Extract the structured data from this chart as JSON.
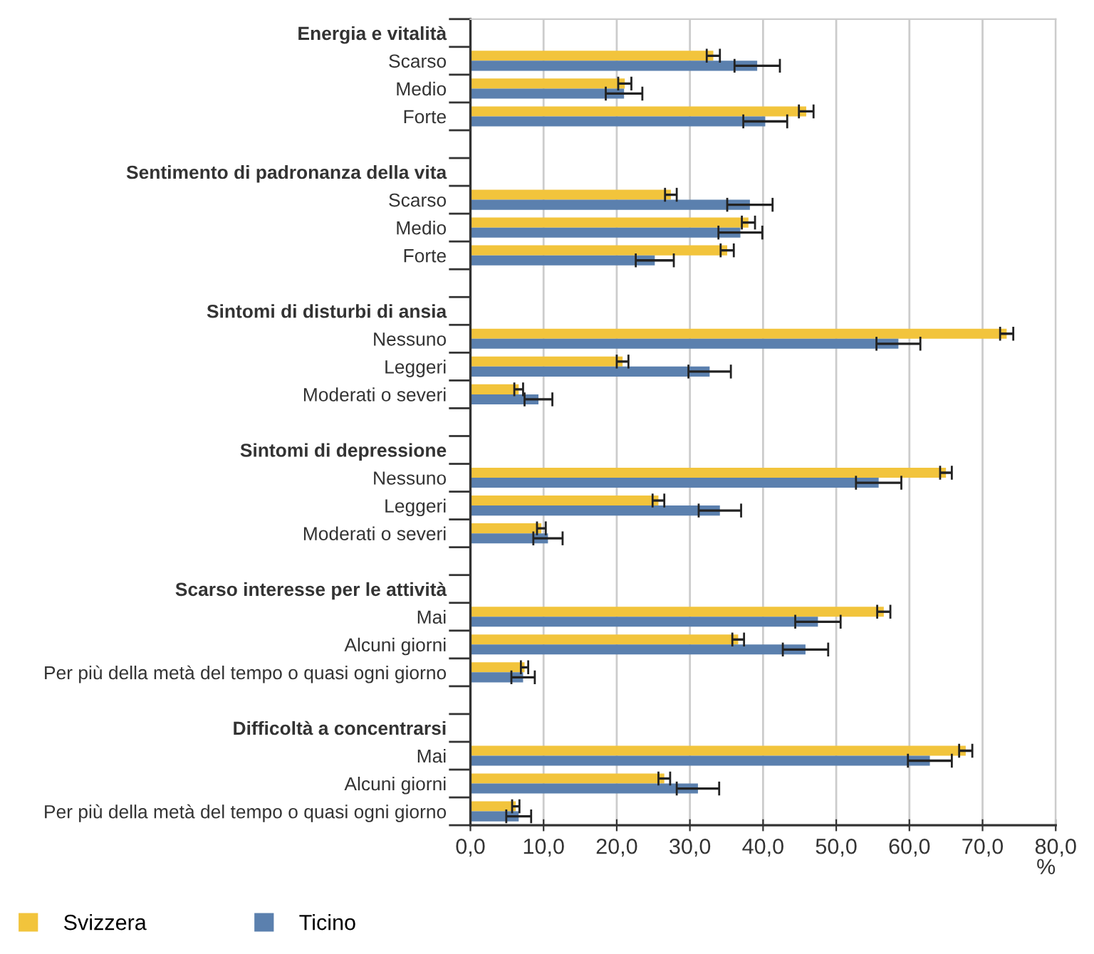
{
  "chart_data": {
    "type": "bar",
    "orientation": "horizontal",
    "xlabel": "%",
    "categories": [
      "Energia e vitalità",
      "Scarso",
      "Medio",
      "Forte",
      null,
      "Sentimento di padronanza della vita",
      "Scarso",
      "Medio",
      "Forte",
      null,
      "Sintomi di disturbi di ansia",
      "Nessuno",
      "Leggeri",
      "Moderati o severi",
      null,
      "Sintomi di depressione",
      "Nessuno",
      "Leggeri",
      "Moderati o severi",
      null,
      "Scarso interesse per le attività",
      "Mai",
      "Alcuni giorni",
      "Per più della metà del tempo o quasi ogni giorno",
      null,
      "Difficoltà a concentrarsi",
      "Mai",
      "Alcuni giorni",
      "Per più della metà del tempo o quasi ogni giorno"
    ],
    "series": [
      {
        "name": "Svizzera",
        "color": "#f2c43c",
        "values": [
          null,
          33.2,
          21.1,
          45.9,
          null,
          null,
          27.4,
          38.0,
          35.1,
          null,
          null,
          73.3,
          20.8,
          6.6,
          null,
          null,
          65.0,
          25.7,
          9.7,
          null,
          null,
          56.5,
          36.6,
          7.4,
          null,
          null,
          67.7,
          26.5,
          6.2
        ],
        "errors": [
          null,
          0.9,
          0.9,
          1.0,
          null,
          null,
          0.8,
          0.9,
          0.9,
          null,
          null,
          0.9,
          0.8,
          0.6,
          null,
          null,
          0.8,
          0.8,
          0.6,
          null,
          null,
          0.9,
          0.8,
          0.5,
          null,
          null,
          0.9,
          0.8,
          0.5
        ]
      },
      {
        "name": "Ticino",
        "color": "#5b80ae",
        "values": [
          null,
          39.2,
          21.0,
          40.3,
          null,
          null,
          38.2,
          36.9,
          25.2,
          null,
          null,
          58.5,
          32.7,
          9.3,
          null,
          null,
          55.8,
          34.1,
          10.6,
          null,
          null,
          47.5,
          45.8,
          7.2,
          null,
          null,
          62.8,
          31.1,
          6.6
        ],
        "errors": [
          null,
          3.1,
          2.5,
          3.0,
          null,
          null,
          3.1,
          3.0,
          2.6,
          null,
          null,
          3.0,
          2.9,
          1.9,
          null,
          null,
          3.1,
          2.9,
          2.0,
          null,
          null,
          3.1,
          3.1,
          1.6,
          null,
          null,
          3.0,
          2.9,
          1.7
        ]
      }
    ],
    "xlim": [
      0,
      80
    ],
    "xticks": [
      {
        "value": 0,
        "label": "0,0"
      },
      {
        "value": 10,
        "label": "10,0"
      },
      {
        "value": 20,
        "label": "20,0"
      },
      {
        "value": 30,
        "label": "30,0"
      },
      {
        "value": 40,
        "label": "40,0"
      },
      {
        "value": 50,
        "label": "50,0"
      },
      {
        "value": 60,
        "label": "60,0"
      },
      {
        "value": 70,
        "label": "70,0"
      },
      {
        "value": 80,
        "label": "80,0"
      }
    ],
    "grid": "x",
    "legend": "bottom left"
  }
}
